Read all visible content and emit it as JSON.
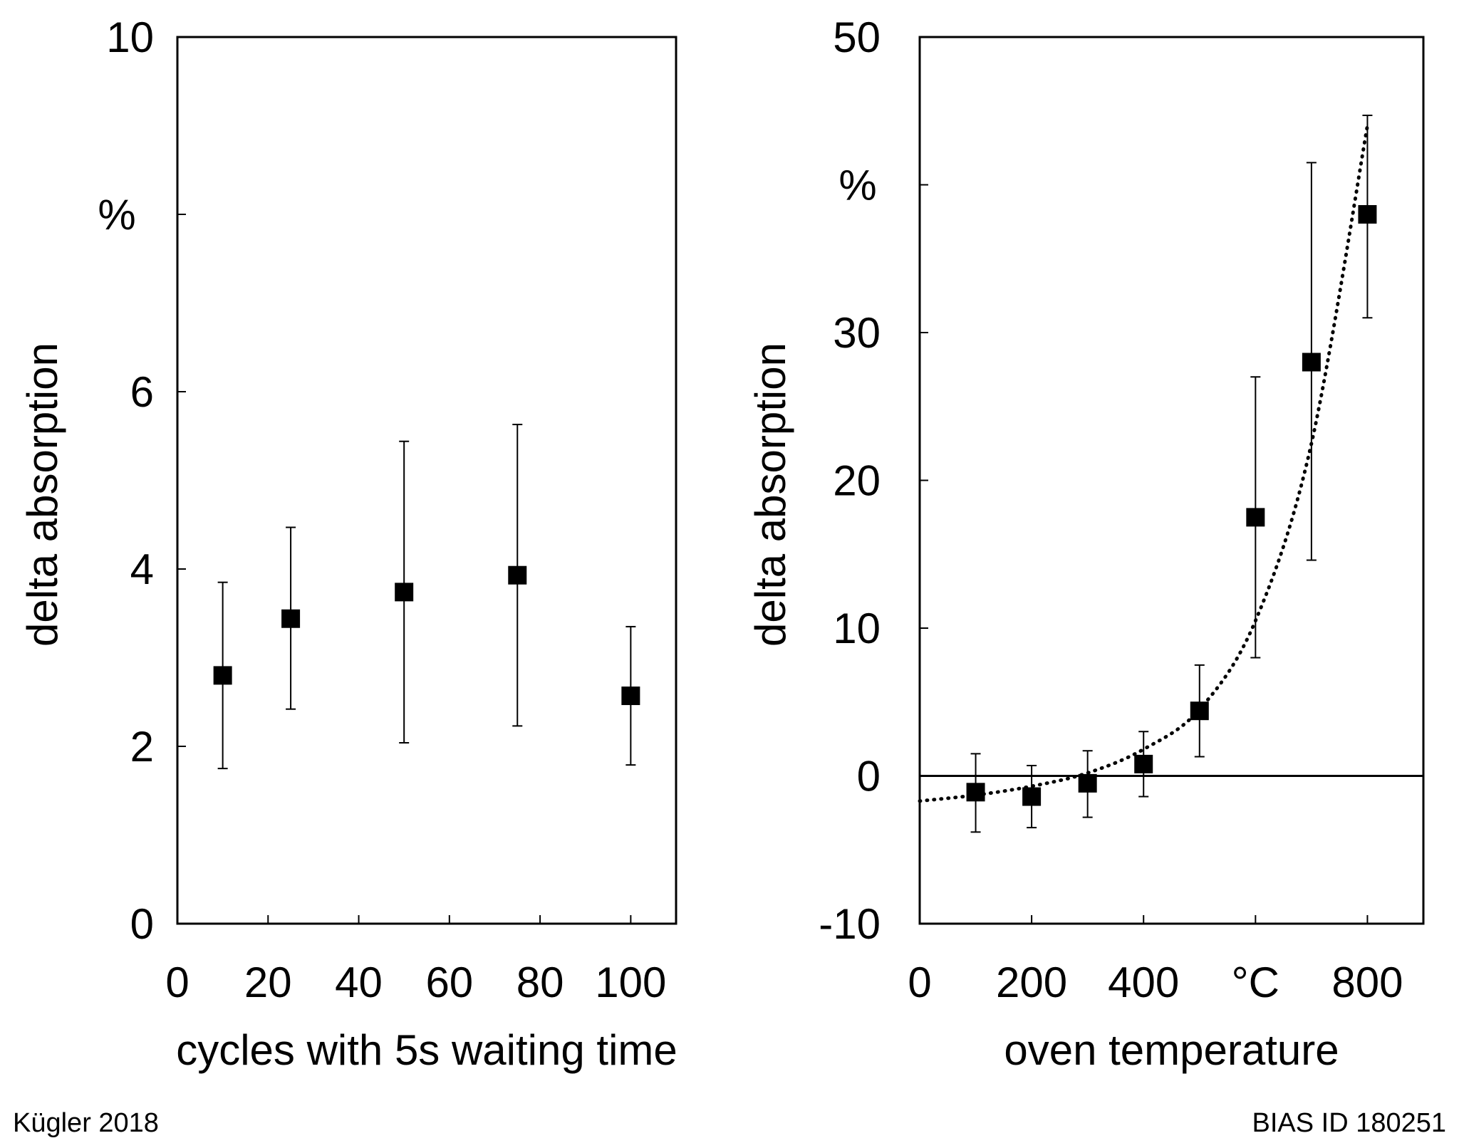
{
  "credits": {
    "author": "Kügler 2018",
    "id": "BIAS ID 180251"
  },
  "chart_data": [
    {
      "type": "scatter",
      "xlabel": "cycles with 5s waiting time",
      "ylabel": "delta absorption",
      "y_unit": "%",
      "xlim": [
        0,
        110
      ],
      "ylim": [
        0,
        10
      ],
      "x_ticks": [
        0,
        20,
        40,
        60,
        80,
        100
      ],
      "x_tick_labels": [
        "0",
        "20",
        "40",
        "60",
        "80",
        "100"
      ],
      "y_ticks": [
        0,
        2,
        4,
        6,
        8,
        10
      ],
      "y_tick_labels": [
        "0",
        "2",
        "4",
        "6",
        "",
        "10"
      ],
      "y_unit_at": 8,
      "grid": false,
      "series": [
        {
          "name": "delta absorption",
          "marker": "square",
          "color": "#000000",
          "x": [
            10,
            25,
            50,
            75,
            100
          ],
          "y": [
            2.8,
            3.44,
            3.74,
            3.93,
            2.57
          ],
          "y_err_low": [
            1.75,
            2.42,
            2.04,
            2.23,
            1.79
          ],
          "y_err_high": [
            3.85,
            4.47,
            5.44,
            5.63,
            3.35
          ]
        }
      ]
    },
    {
      "type": "scatter",
      "xlabel": "oven temperature",
      "ylabel": "delta absorption",
      "y_unit": "%",
      "x_unit": "°C",
      "xlim": [
        0,
        900
      ],
      "ylim": [
        -10,
        50
      ],
      "x_ticks": [
        0,
        200,
        400,
        600,
        800
      ],
      "x_tick_labels": [
        "0",
        "200",
        "400",
        "°C",
        "800"
      ],
      "y_ticks": [
        -10,
        0,
        10,
        20,
        30,
        40,
        50
      ],
      "y_tick_labels": [
        "-10",
        "0",
        "10",
        "20",
        "30",
        "",
        "50"
      ],
      "y_unit_at": 40,
      "grid": false,
      "zero_line": 0,
      "series": [
        {
          "name": "delta absorption",
          "marker": "square",
          "color": "#000000",
          "x": [
            100,
            200,
            300,
            400,
            500,
            600,
            700,
            800
          ],
          "y": [
            -1.1,
            -1.4,
            -0.5,
            0.8,
            4.4,
            17.5,
            28.0,
            38.0
          ],
          "y_err_low": [
            -3.8,
            -3.5,
            -2.8,
            -1.4,
            1.3,
            8.0,
            14.6,
            31.0
          ],
          "y_err_high": [
            1.5,
            0.7,
            1.7,
            3.0,
            7.5,
            27.0,
            41.5,
            44.7
          ]
        }
      ],
      "fit_curve": {
        "style": "dotted",
        "x": [
          0,
          100,
          200,
          300,
          400,
          500,
          600,
          700,
          800
        ],
        "y": [
          -1.7,
          -1.3,
          -0.7,
          0.2,
          1.8,
          4.5,
          10.5,
          22.5,
          44.0
        ]
      }
    }
  ]
}
